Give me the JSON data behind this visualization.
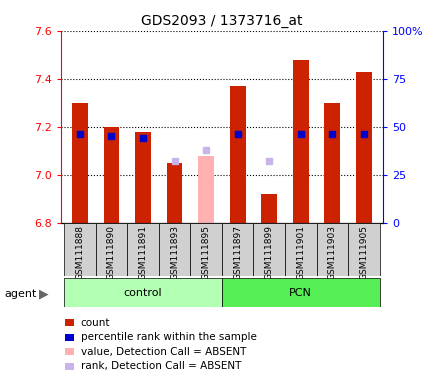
{
  "title": "GDS2093 / 1373716_at",
  "samples": [
    "GSM111888",
    "GSM111890",
    "GSM111891",
    "GSM111893",
    "GSM111895",
    "GSM111897",
    "GSM111899",
    "GSM111901",
    "GSM111903",
    "GSM111905"
  ],
  "values": [
    7.3,
    7.2,
    7.18,
    7.05,
    null,
    7.37,
    6.92,
    7.48,
    7.3,
    7.43
  ],
  "absent_values": [
    null,
    null,
    null,
    null,
    7.08,
    null,
    null,
    null,
    null,
    null
  ],
  "percentile_ranks": [
    46,
    45,
    44,
    null,
    null,
    46,
    null,
    46,
    46,
    46
  ],
  "absent_ranks": [
    null,
    null,
    null,
    32,
    38,
    null,
    32,
    null,
    null,
    null
  ],
  "ylim_left": [
    6.8,
    7.6
  ],
  "ylim_right": [
    0,
    100
  ],
  "yticks_left": [
    6.8,
    7.0,
    7.2,
    7.4,
    7.6
  ],
  "yticks_right": [
    0,
    25,
    50,
    75,
    100
  ],
  "bar_color": "#cc2200",
  "rank_color": "#0000cc",
  "absent_bar_color": "#ffb0b0",
  "absent_rank_color": "#c8b4e8",
  "control_bg": "#b3ffb3",
  "pcn_bg": "#55ee55",
  "group_label_control": "control",
  "group_label_pcn": "PCN",
  "bar_width": 0.5,
  "baseline": 6.8,
  "legend_items": [
    {
      "color": "#cc2200",
      "label": "count"
    },
    {
      "color": "#0000cc",
      "label": "percentile rank within the sample"
    },
    {
      "color": "#ffb0b0",
      "label": "value, Detection Call = ABSENT"
    },
    {
      "color": "#c8b4e8",
      "label": "rank, Detection Call = ABSENT"
    }
  ]
}
